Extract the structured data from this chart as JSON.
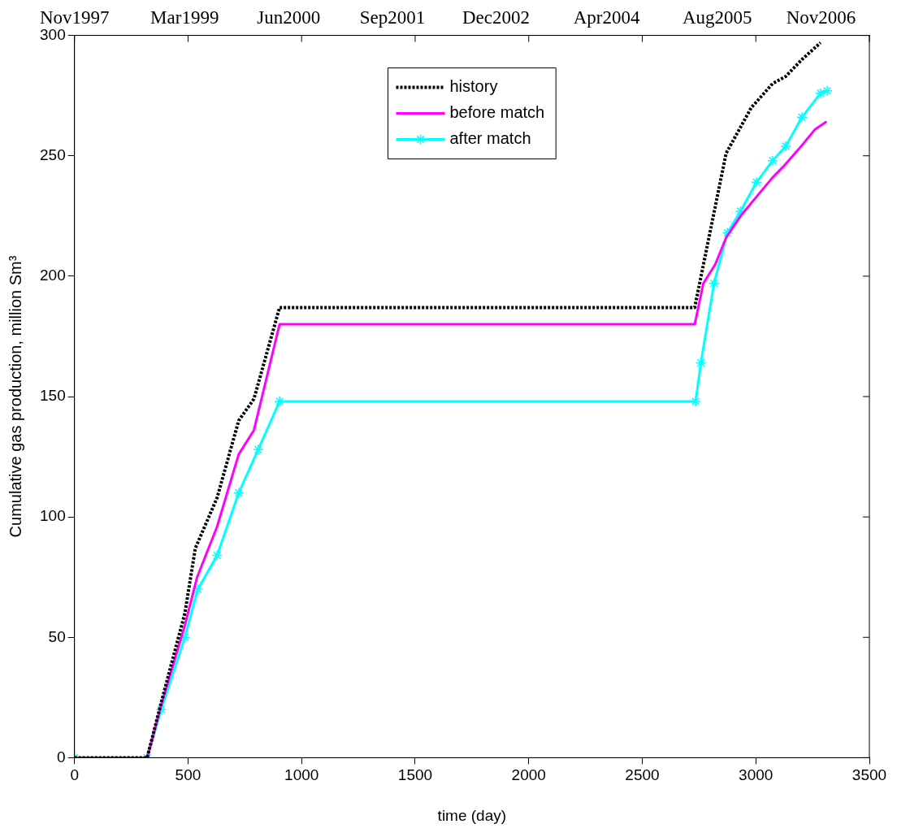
{
  "chart_data": {
    "type": "line",
    "xlabel": "time (day)",
    "ylabel": "Cumulative gas production, million Sm³",
    "xlim": [
      0,
      3500
    ],
    "xticks": [
      0,
      500,
      1000,
      1500,
      2000,
      2500,
      3000,
      3500
    ],
    "ylim": [
      0,
      300
    ],
    "yticks": [
      0,
      50,
      100,
      150,
      200,
      250,
      300
    ],
    "x2lim": [
      "1997-11-01",
      "2007-06-02"
    ],
    "x2ticks": [
      {
        "value": "1997-11",
        "label": "Nov1997"
      },
      {
        "value": "1999-03",
        "label": "Mar1999"
      },
      {
        "value": "2000-06",
        "label": "Jun2000"
      },
      {
        "value": "2001-09",
        "label": "Sep2001"
      },
      {
        "value": "2002-12",
        "label": "Dec2002"
      },
      {
        "value": "2004-04",
        "label": "Apr2004"
      },
      {
        "value": "2005-08",
        "label": "Aug2005"
      },
      {
        "value": "2006-11",
        "label": "Nov2006"
      }
    ],
    "grid": false,
    "legend": "top",
    "series": [
      {
        "name": "history",
        "color": "#000000",
        "line_style": "dotted",
        "marker": "none",
        "x": [
          0,
          320,
          382,
          486,
          532,
          628,
          723,
          790,
          903,
          2731,
          2869,
          2980,
          3074,
          3132,
          3203,
          3285
        ],
        "values": [
          0,
          0,
          23,
          60,
          87,
          108,
          140,
          149,
          187,
          187,
          251,
          270,
          280,
          283,
          290,
          297
        ]
      },
      {
        "name": "before match",
        "color": "#ff00ff",
        "line_style": "solid",
        "marker": "none",
        "x": [
          0,
          320,
          382,
          486,
          540,
          628,
          723,
          790,
          903,
          2731,
          2769,
          2822,
          2869,
          2933,
          3003,
          3074,
          3126,
          3191,
          3261,
          3308
        ],
        "values": [
          0,
          0,
          22,
          55,
          75,
          96,
          126,
          136,
          180,
          180,
          197,
          205,
          216,
          225,
          233,
          241,
          246,
          253,
          261,
          264
        ]
      },
      {
        "name": "after match",
        "color": "#00ffff",
        "line_style": "solid",
        "marker": "cross",
        "x": [
          0,
          320,
          382,
          486,
          543,
          628,
          723,
          809,
          903,
          2735,
          2758,
          2816,
          2875,
          2933,
          3003,
          3074,
          3132,
          3203,
          3285,
          3314
        ],
        "values": [
          0,
          0,
          20,
          50,
          70,
          84,
          110,
          128,
          148,
          148,
          164,
          197,
          218,
          227,
          239,
          248,
          254,
          266,
          276,
          277
        ]
      }
    ]
  }
}
